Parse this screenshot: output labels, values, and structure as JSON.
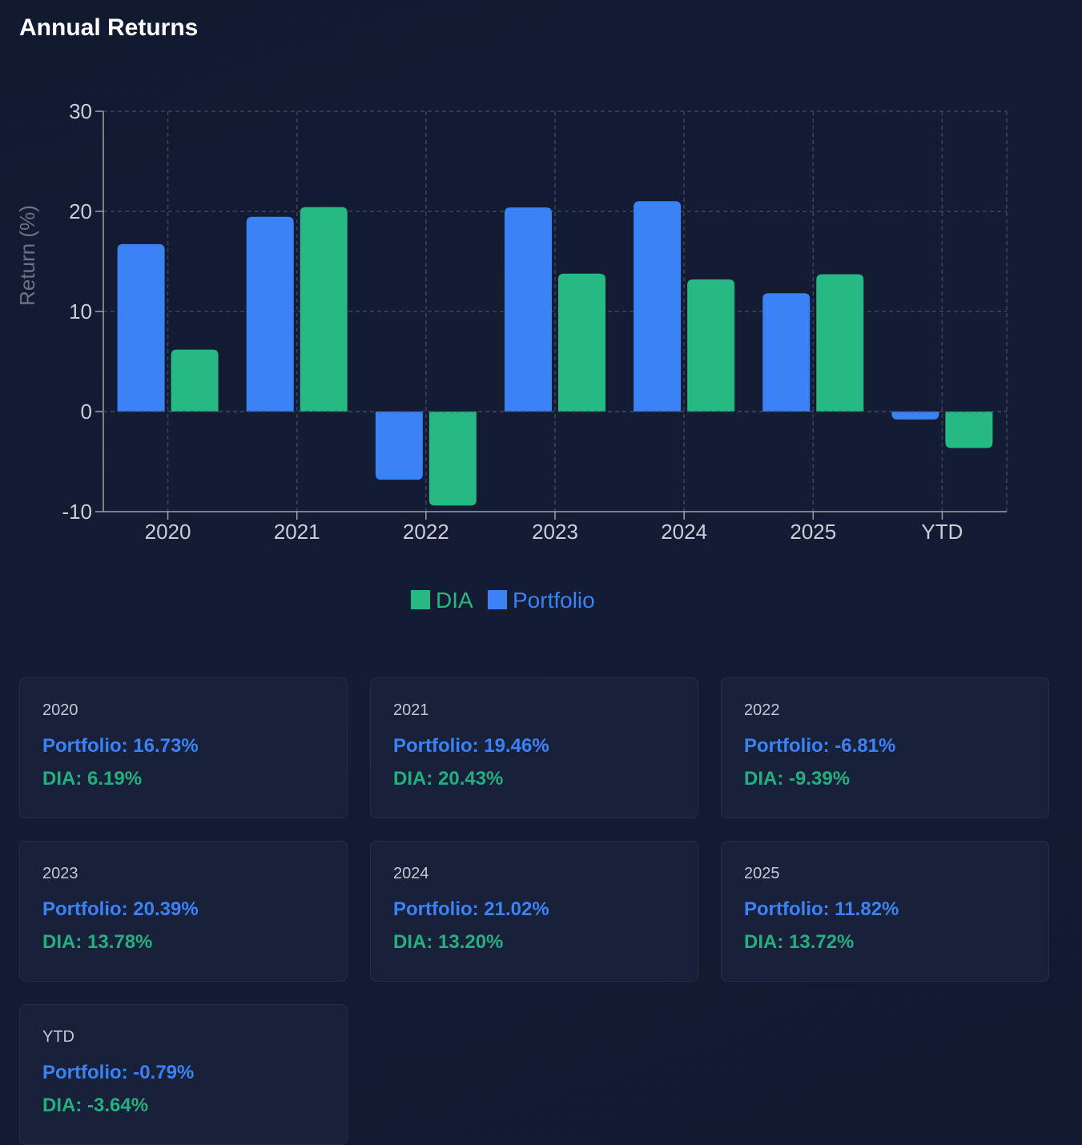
{
  "title": "Annual Returns",
  "colors": {
    "portfolio": "#3b82f6",
    "dia": "#26b984",
    "grid": "#3b4459",
    "axis": "#9aa1ae",
    "tick_text": "#c9ced8",
    "ylabel_text": "#6b7385"
  },
  "chart_data": {
    "type": "bar",
    "title": "",
    "xlabel": "",
    "ylabel": "Return (%)",
    "ylim": [
      -10,
      30
    ],
    "yticks": [
      -10,
      0,
      10,
      20,
      30
    ],
    "grid": true,
    "legend_position": "bottom-center",
    "categories": [
      "2020",
      "2021",
      "2022",
      "2023",
      "2024",
      "2025",
      "YTD"
    ],
    "series": [
      {
        "name": "Portfolio",
        "color": "#3b82f6",
        "values": [
          16.73,
          19.46,
          -6.81,
          20.39,
          21.02,
          11.82,
          -0.79
        ]
      },
      {
        "name": "DIA",
        "color": "#26b984",
        "values": [
          6.19,
          20.43,
          -9.39,
          13.78,
          13.2,
          13.72,
          -3.64
        ]
      }
    ],
    "legend": [
      "DIA",
      "Portfolio"
    ]
  },
  "cards": [
    {
      "year": "2020",
      "portfolio": "Portfolio: 16.73%",
      "dia": "DIA: 6.19%"
    },
    {
      "year": "2021",
      "portfolio": "Portfolio: 19.46%",
      "dia": "DIA: 20.43%"
    },
    {
      "year": "2022",
      "portfolio": "Portfolio: -6.81%",
      "dia": "DIA: -9.39%"
    },
    {
      "year": "2023",
      "portfolio": "Portfolio: 20.39%",
      "dia": "DIA: 13.78%"
    },
    {
      "year": "2024",
      "portfolio": "Portfolio: 21.02%",
      "dia": "DIA: 13.20%"
    },
    {
      "year": "2025",
      "portfolio": "Portfolio: 11.82%",
      "dia": "DIA: 13.72%"
    },
    {
      "year": "YTD",
      "portfolio": "Portfolio: -0.79%",
      "dia": "DIA: -3.64%"
    }
  ]
}
